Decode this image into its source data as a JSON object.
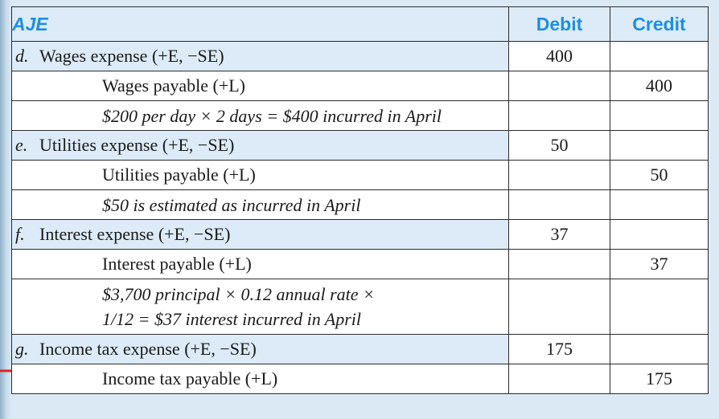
{
  "header": {
    "aje": "AJE",
    "debit": "Debit",
    "credit": "Credit"
  },
  "rows": [
    {
      "letter": "d.",
      "account": "Wages expense (+E, −SE)",
      "debit": "400",
      "credit": ""
    },
    {
      "account": "Wages payable (+L)",
      "debit": "",
      "credit": "400"
    },
    {
      "note": "$200 per day × 2 days = $400 incurred in April"
    },
    {
      "letter": "e.",
      "account": "Utilities expense (+E, −SE)",
      "debit": "50",
      "credit": ""
    },
    {
      "account": "Utilities payable (+L)",
      "debit": "",
      "credit": "50"
    },
    {
      "note": "$50 is estimated as incurred in April"
    },
    {
      "letter": "f.",
      "account": "Interest expense (+E, −SE)",
      "debit": "37",
      "credit": ""
    },
    {
      "account": "Interest payable (+L)",
      "debit": "",
      "credit": "37"
    },
    {
      "note_lines": [
        "$3,700 principal × 0.12 annual rate ×",
        "1/12 = $37 interest incurred in April"
      ]
    },
    {
      "letter": "g.",
      "account": "Income tax expense (+E, −SE)",
      "debit": "175",
      "credit": ""
    },
    {
      "account": "Income tax payable (+L)",
      "debit": "",
      "credit": "175"
    }
  ],
  "colors": {
    "header_text": "#1e8fe1",
    "header_bg": "#dcebf7",
    "arrow": "#e0232a",
    "border": "#2b2b2b"
  }
}
